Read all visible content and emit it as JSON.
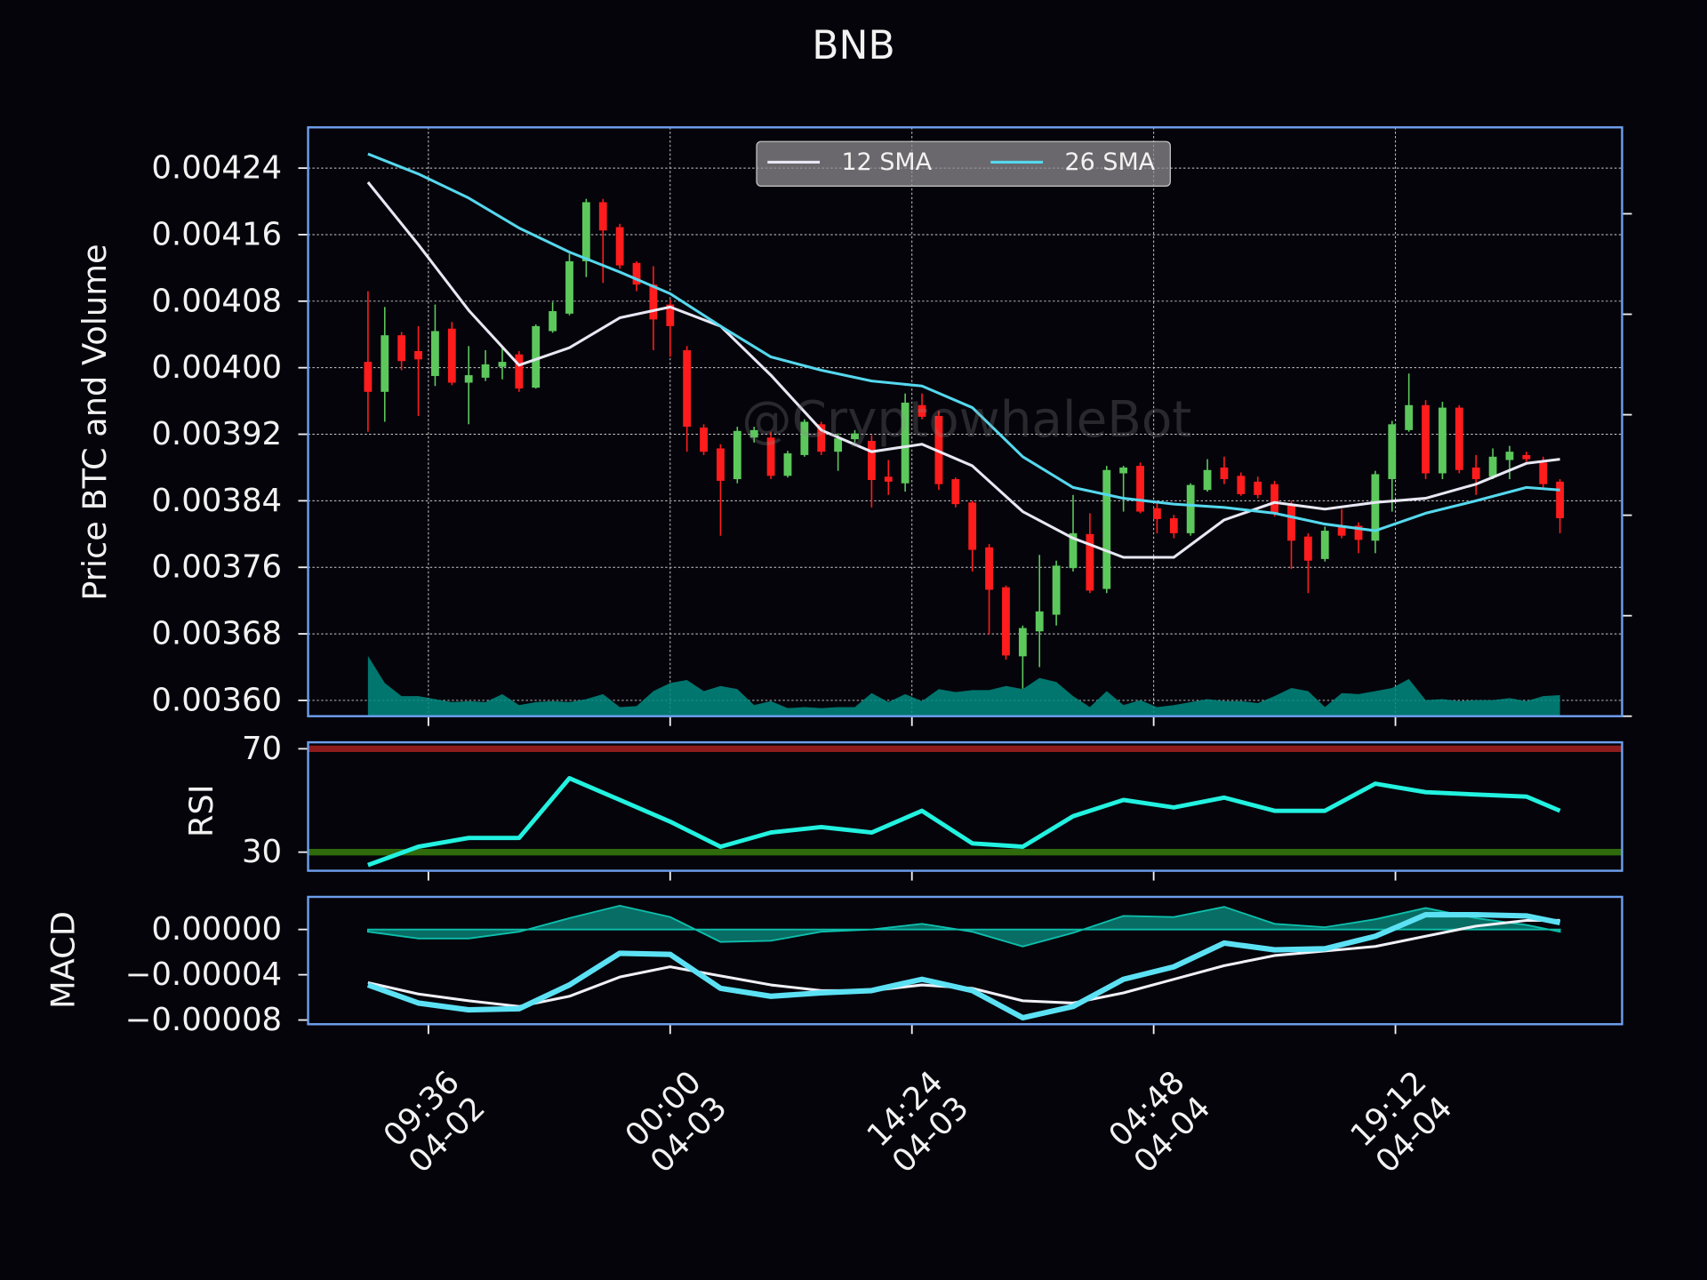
{
  "chart_data": [
    {
      "type": "candlestick",
      "title": "BNB",
      "ylabel": "Price BTC and Volume",
      "watermark": "@CryptowhaleBot",
      "xlim": [
        "04-02 02:26",
        "04-05 08:42"
      ],
      "ylim": [
        0.003581,
        0.004289
      ],
      "yticks": [
        0.00424,
        0.00416,
        0.00408,
        {
          "value": 0.004,
          "label": "0.00400"
        },
        0.00392,
        0.00384,
        0.00376,
        0.00368,
        {
          "value": 0.0036,
          "label": "0.00360"
        }
      ],
      "grid": true,
      "up_color": "#5cc85c",
      "down_color": "#ff1c1c",
      "x": [
        "04-02 06:00",
        "04-02 07:00",
        "04-02 08:00",
        "04-02 09:00",
        "04-02 10:00",
        "04-02 11:00",
        "04-02 12:00",
        "04-02 13:00",
        "04-02 14:00",
        "04-02 15:00",
        "04-02 16:00",
        "04-02 17:00",
        "04-02 18:00",
        "04-02 19:00",
        "04-02 20:00",
        "04-02 21:00",
        "04-02 22:00",
        "04-02 23:00",
        "04-03 00:00",
        "04-03 01:00",
        "04-03 02:00",
        "04-03 03:00",
        "04-03 04:00",
        "04-03 05:00",
        "04-03 06:00",
        "04-03 07:00",
        "04-03 08:00",
        "04-03 09:00",
        "04-03 10:00",
        "04-03 11:00",
        "04-03 12:00",
        "04-03 13:00",
        "04-03 14:00",
        "04-03 15:00",
        "04-03 16:00",
        "04-03 17:00",
        "04-03 18:00",
        "04-03 19:00",
        "04-03 20:00",
        "04-03 21:00",
        "04-03 22:00",
        "04-03 23:00",
        "04-04 00:00",
        "04-04 01:00",
        "04-04 02:00",
        "04-04 03:00",
        "04-04 04:00",
        "04-04 05:00",
        "04-04 06:00",
        "04-04 07:00",
        "04-04 08:00",
        "04-04 09:00",
        "04-04 10:00",
        "04-04 11:00",
        "04-04 12:00",
        "04-04 13:00",
        "04-04 14:00",
        "04-04 15:00",
        "04-04 16:00",
        "04-04 17:00",
        "04-04 18:00",
        "04-04 19:00",
        "04-04 20:00",
        "04-04 21:00",
        "04-04 22:00",
        "04-04 23:00",
        "04-05 00:00",
        "04-05 01:00",
        "04-05 02:00",
        "04-05 03:00",
        "04-05 04:00",
        "04-05 05:00"
      ],
      "open": [
        0.004007,
        0.003971,
        0.004039,
        0.00402,
        0.00399,
        0.004047,
        0.003982,
        0.003988,
        0.004001,
        0.004016,
        0.003976,
        0.004044,
        0.004065,
        0.004128,
        0.004199,
        0.004169,
        0.004126,
        0.0041,
        0.004076,
        0.004021,
        0.003928,
        0.003903,
        0.003866,
        0.003916,
        0.003916,
        0.00387,
        0.003895,
        0.003932,
        0.003899,
        0.003914,
        0.003912,
        0.003869,
        0.003861,
        0.003955,
        0.003942,
        0.003866,
        0.003838,
        0.003784,
        0.003736,
        0.003653,
        0.003683,
        0.003703,
        0.003759,
        0.0038,
        0.003734,
        0.003873,
        0.003882,
        0.003831,
        0.003819,
        0.003801,
        0.003853,
        0.00388,
        0.00387,
        0.003863,
        0.00386,
        0.003834,
        0.003797,
        0.00377,
        0.00381,
        0.00381,
        0.003792,
        0.003866,
        0.003925,
        0.003955,
        0.003873,
        0.003952,
        0.00388,
        0.003869,
        0.003889,
        0.003895,
        0.003886,
        0.003863
      ],
      "high": [
        0.004092,
        0.004073,
        0.004043,
        0.00405,
        0.004076,
        0.004055,
        0.004026,
        0.004021,
        0.004024,
        0.00402,
        0.004052,
        0.004079,
        0.004137,
        0.004203,
        0.004203,
        0.004173,
        0.004128,
        0.004122,
        0.004082,
        0.004026,
        0.003932,
        0.003908,
        0.003929,
        0.003929,
        0.003923,
        0.0039,
        0.003938,
        0.003935,
        0.003921,
        0.003925,
        0.003919,
        0.003889,
        0.003969,
        0.003969,
        0.003948,
        0.003868,
        0.00384,
        0.003788,
        0.003738,
        0.00369,
        0.003775,
        0.003768,
        0.003847,
        0.003825,
        0.003882,
        0.003882,
        0.003886,
        0.003838,
        0.003823,
        0.003861,
        0.00389,
        0.003893,
        0.003874,
        0.003869,
        0.003864,
        0.00384,
        0.003801,
        0.003809,
        0.00383,
        0.003814,
        0.003876,
        0.003936,
        0.003993,
        0.003961,
        0.003959,
        0.003955,
        0.003895,
        0.003903,
        0.003906,
        0.003899,
        0.003893,
        0.003866
      ],
      "low": [
        0.003923,
        0.003935,
        0.003997,
        0.003942,
        0.003978,
        0.003979,
        0.003932,
        0.003984,
        0.003986,
        0.003971,
        0.003975,
        0.004042,
        0.004063,
        0.004109,
        0.004102,
        0.004119,
        0.004092,
        0.004021,
        0.004013,
        0.003899,
        0.003895,
        0.003798,
        0.003861,
        0.00391,
        0.003866,
        0.003868,
        0.003893,
        0.003895,
        0.003876,
        0.00391,
        0.003832,
        0.003847,
        0.003851,
        0.003938,
        0.003853,
        0.003832,
        0.003755,
        0.003679,
        0.003649,
        0.003614,
        0.00364,
        0.00369,
        0.003755,
        0.003729,
        0.003729,
        0.003827,
        0.003825,
        0.003801,
        0.003795,
        0.003798,
        0.003851,
        0.00386,
        0.003846,
        0.003843,
        0.003821,
        0.003758,
        0.003729,
        0.003767,
        0.003795,
        0.003777,
        0.003777,
        0.003827,
        0.003923,
        0.003866,
        0.003866,
        0.003873,
        0.003847,
        0.003866,
        0.003866,
        0.003887,
        0.003856,
        0.003801
      ],
      "close": [
        0.003971,
        0.004039,
        0.004008,
        0.00401,
        0.004044,
        0.003982,
        0.003991,
        0.004004,
        0.004007,
        0.003975,
        0.00405,
        0.004068,
        0.004128,
        0.004199,
        0.004165,
        0.004123,
        0.0041,
        0.004058,
        0.00405,
        0.003929,
        0.003899,
        0.003864,
        0.003924,
        0.003925,
        0.00387,
        0.003897,
        0.003935,
        0.003899,
        0.003915,
        0.003921,
        0.003865,
        0.003863,
        0.003958,
        0.003941,
        0.00386,
        0.003836,
        0.003781,
        0.003733,
        0.003654,
        0.003687,
        0.003707,
        0.003762,
        0.003801,
        0.003732,
        0.003877,
        0.00388,
        0.003827,
        0.003818,
        0.003801,
        0.003859,
        0.003877,
        0.003866,
        0.003848,
        0.003847,
        0.003825,
        0.003792,
        0.003768,
        0.003804,
        0.003798,
        0.003793,
        0.003872,
        0.003932,
        0.003955,
        0.003873,
        0.003952,
        0.003877,
        0.003866,
        0.003893,
        0.003899,
        0.00389,
        0.00386,
        0.003819
      ],
      "volume": {
        "axis": "y2",
        "color": "#008b80",
        "values": [
          0.6,
          0.33,
          0.2,
          0.2,
          0.17,
          0.14,
          0.15,
          0.14,
          0.22,
          0.11,
          0.14,
          0.15,
          0.14,
          0.17,
          0.22,
          0.09,
          0.1,
          0.25,
          0.33,
          0.36,
          0.25,
          0.3,
          0.27,
          0.11,
          0.15,
          0.08,
          0.09,
          0.08,
          0.09,
          0.09,
          0.23,
          0.14,
          0.22,
          0.15,
          0.27,
          0.24,
          0.26,
          0.26,
          0.3,
          0.27,
          0.38,
          0.34,
          0.2,
          0.09,
          0.25,
          0.11,
          0.16,
          0.09,
          0.11,
          0.14,
          0.17,
          0.15,
          0.15,
          0.13,
          0.2,
          0.28,
          0.25,
          0.09,
          0.23,
          0.22,
          0.25,
          0.28,
          0.37,
          0.16,
          0.17,
          0.15,
          0.16,
          0.16,
          0.18,
          0.15,
          0.2,
          0.21
        ]
      },
      "y2lim": [
        0,
        5.86
      ],
      "y2ticks": [
        0,
        1,
        2,
        3,
        4,
        5
      ],
      "series": [
        {
          "name": "12 SMA",
          "color": "#e8e8f4",
          "x": [
            "04-02 06:00",
            "04-02 09:00",
            "04-02 12:00",
            "04-02 15:00",
            "04-02 18:00",
            "04-02 21:00",
            "04-03 00:00",
            "04-03 03:00",
            "04-03 06:00",
            "04-03 09:00",
            "04-03 12:00",
            "04-03 15:00",
            "04-03 18:00",
            "04-03 21:00",
            "04-04 00:00",
            "04-04 03:00",
            "04-04 06:00",
            "04-04 09:00",
            "04-04 12:00",
            "04-04 15:00",
            "04-04 18:00",
            "04-04 21:00",
            "04-05 00:00",
            "04-05 03:00",
            "04-05 05:00"
          ],
          "values": [
            0.004223,
            0.004148,
            0.004069,
            0.004003,
            0.004024,
            0.00406,
            0.004073,
            0.00405,
            0.003991,
            0.003925,
            0.003899,
            0.003908,
            0.003882,
            0.003827,
            0.003795,
            0.003772,
            0.003772,
            0.003817,
            0.003838,
            0.00383,
            0.003838,
            0.003843,
            0.00386,
            0.003885,
            0.00389
          ]
        },
        {
          "name": "26 SMA",
          "color": "#55d8ee",
          "x": [
            "04-02 06:00",
            "04-02 09:00",
            "04-02 12:00",
            "04-02 15:00",
            "04-02 18:00",
            "04-02 21:00",
            "04-03 00:00",
            "04-03 03:00",
            "04-03 06:00",
            "04-03 09:00",
            "04-03 12:00",
            "04-03 15:00",
            "04-03 18:00",
            "04-03 21:00",
            "04-04 00:00",
            "04-04 03:00",
            "04-04 06:00",
            "04-04 09:00",
            "04-04 12:00",
            "04-04 15:00",
            "04-04 18:00",
            "04-04 21:00",
            "04-05 00:00",
            "04-05 03:00",
            "04-05 05:00"
          ],
          "values": [
            0.004257,
            0.004233,
            0.004204,
            0.004168,
            0.004139,
            0.004115,
            0.004089,
            0.00405,
            0.004013,
            0.003997,
            0.003984,
            0.003978,
            0.003952,
            0.003893,
            0.003856,
            0.003843,
            0.003836,
            0.003832,
            0.003825,
            0.003812,
            0.003804,
            0.003825,
            0.00384,
            0.003856,
            0.003853
          ]
        }
      ]
    },
    {
      "type": "line",
      "ylabel": "RSI",
      "xlim": [
        "04-02 02:26",
        "04-05 08:42"
      ],
      "ylim": [
        22.8,
        72.5
      ],
      "yticks": [
        70,
        30
      ],
      "hlines": [
        {
          "value": 70,
          "color": "#8e1c1c"
        },
        {
          "value": 30,
          "color": "#2f6a0c"
        }
      ],
      "series": [
        {
          "color": "#22f2e0",
          "width": 4,
          "x": [
            "04-02 06:00",
            "04-02 09:00",
            "04-02 12:00",
            "04-02 15:00",
            "04-02 18:00",
            "04-02 21:00",
            "04-03 00:00",
            "04-03 03:00",
            "04-03 06:00",
            "04-03 09:00",
            "04-03 12:00",
            "04-03 15:00",
            "04-03 18:00",
            "04-03 21:00",
            "04-04 00:00",
            "04-04 03:00",
            "04-04 06:00",
            "04-04 09:00",
            "04-04 12:00",
            "04-04 15:00",
            "04-04 18:00",
            "04-04 21:00",
            "04-05 00:00",
            "04-05 03:00",
            "04-05 05:00"
          ],
          "values": [
            25,
            32.1,
            35.5,
            35.5,
            58.6,
            50.2,
            41.8,
            32.1,
            37.6,
            39.7,
            37.6,
            46,
            33.4,
            32.1,
            43.9,
            50.2,
            47.3,
            51.1,
            46,
            46,
            56.5,
            53.2,
            52.3,
            51.5,
            46
          ]
        }
      ]
    },
    {
      "type": "line",
      "ylabel": "MACD",
      "xlim": [
        "04-02 02:26",
        "04-05 08:42"
      ],
      "ylim": [
        -8.37e-05,
        2.88e-05
      ],
      "yticks": [
        {
          "value": 0,
          "label": "0.00000"
        },
        {
          "value": -4e-05,
          "label": "−0.00004"
        },
        {
          "value": -8e-05,
          "label": "−0.00008"
        }
      ],
      "xticks": [
        {
          "value": "04-02 09:36",
          "label": "09:36\n04-02"
        },
        {
          "value": "04-03 00:00",
          "label": "00:00\n04-03"
        },
        {
          "value": "04-03 14:24",
          "label": "14:24\n04-03"
        },
        {
          "value": "04-04 04:48",
          "label": "04:48\n04-04"
        },
        {
          "value": "04-04 19:12",
          "label": "19:12\n04-04"
        }
      ],
      "x": [
        "04-02 06:00",
        "04-02 09:00",
        "04-02 12:00",
        "04-02 15:00",
        "04-02 18:00",
        "04-02 21:00",
        "04-03 00:00",
        "04-03 03:00",
        "04-03 06:00",
        "04-03 09:00",
        "04-03 12:00",
        "04-03 15:00",
        "04-03 18:00",
        "04-03 21:00",
        "04-04 00:00",
        "04-04 03:00",
        "04-04 06:00",
        "04-04 09:00",
        "04-04 12:00",
        "04-04 15:00",
        "04-04 18:00",
        "04-04 21:00",
        "04-05 00:00",
        "04-05 03:00",
        "04-05 05:00"
      ],
      "histogram": {
        "color": "#0a9a8a",
        "values": [
          -2e-06,
          -8e-06,
          -8e-06,
          -2e-06,
          1e-05,
          2.1e-05,
          1.1e-05,
          -1.1e-05,
          -1e-05,
          -2e-06,
          0,
          5e-06,
          -2e-06,
          -1.5e-05,
          -3e-06,
          1.2e-05,
          1.1e-05,
          2e-05,
          5e-06,
          2e-06,
          9e-06,
          1.9e-05,
          1e-05,
          4e-06,
          -2e-06
        ]
      },
      "series": [
        {
          "color": "#f0f0f8",
          "width": 2.5,
          "values": [
            -4.7e-05,
            -5.7e-05,
            -6.3e-05,
            -6.8e-05,
            -5.9e-05,
            -4.2e-05,
            -3.3e-05,
            -4.1e-05,
            -4.9e-05,
            -5.4e-05,
            -5.4e-05,
            -4.9e-05,
            -5.2e-05,
            -6.3e-05,
            -6.5e-05,
            -5.6e-05,
            -4.4e-05,
            -3.2e-05,
            -2.3e-05,
            -1.9e-05,
            -1.5e-05,
            -6e-06,
            3e-06,
            8e-06,
            8e-06
          ]
        },
        {
          "color": "#5ce1f4",
          "width": 5,
          "values": [
            -4.9e-05,
            -6.5e-05,
            -7.1e-05,
            -7e-05,
            -4.9e-05,
            -2.1e-05,
            -2.2e-05,
            -5.2e-05,
            -5.9e-05,
            -5.6e-05,
            -5.4e-05,
            -4.4e-05,
            -5.4e-05,
            -7.8e-05,
            -6.8e-05,
            -4.4e-05,
            -3.3e-05,
            -1.2e-05,
            -1.8e-05,
            -1.7e-05,
            -6e-06,
            1.3e-05,
            1.3e-05,
            1.2e-05,
            6e-06
          ]
        }
      ]
    }
  ]
}
